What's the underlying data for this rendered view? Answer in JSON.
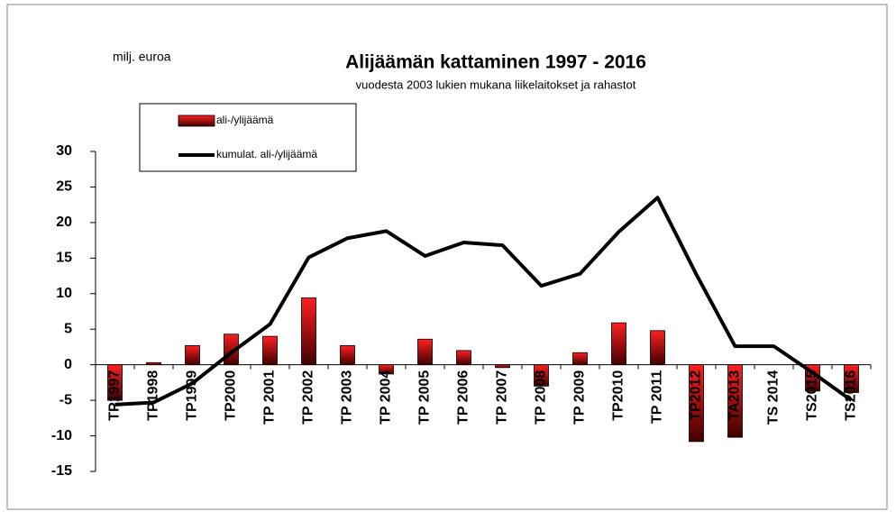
{
  "chart_data": {
    "type": "combo",
    "title": "Alijäämän kattaminen 1997 - 2016",
    "subtitle": "vuodesta 2003 lukien mukana liikelaitokset ja rahastot",
    "y_label": "milj. euroa",
    "categories": [
      "TP1997",
      "TP1998",
      "TP1999",
      "TP2000",
      "TP 2001",
      "TP 2002",
      "TP 2003",
      "TP 2004",
      "TP 2005",
      "TP 2006",
      "TP 2007",
      "TP 2008",
      "TP 2009",
      "TP2010",
      "TP 2011",
      "TP2012",
      "TA2013",
      "TS 2014",
      "TS2015",
      "TS2016"
    ],
    "series": [
      {
        "name": "ali-/ylijäämä",
        "type": "bar",
        "color": "#e00000",
        "values": [
          -5.0,
          0.3,
          2.7,
          4.3,
          4.0,
          9.4,
          2.7,
          -1.3,
          3.6,
          2.0,
          -0.4,
          -3.0,
          1.7,
          5.9,
          4.8,
          -10.8,
          -10.2,
          0,
          -3.7,
          -3.9
        ]
      },
      {
        "name": "kumulat. ali-/ylijäämä",
        "type": "line",
        "color": "#000000",
        "values": [
          -5.6,
          -5.3,
          -2.6,
          1.7,
          5.7,
          15.1,
          17.8,
          18.8,
          15.3,
          17.2,
          16.8,
          11.1,
          12.8,
          18.7,
          23.5,
          12.7,
          2.6,
          2.6,
          -1.1,
          -5.0
        ]
      }
    ],
    "ylim": [
      -15,
      30
    ],
    "yticks": [
      -15,
      -10,
      -5,
      0,
      5,
      10,
      15,
      20,
      25,
      30
    ],
    "grid": false
  }
}
